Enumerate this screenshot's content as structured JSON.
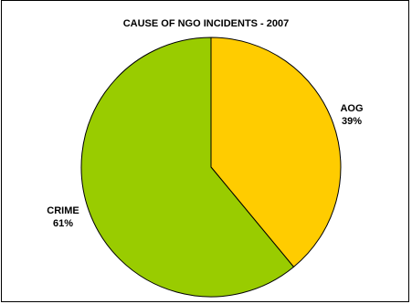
{
  "chart_data": {
    "type": "pie",
    "title": "CAUSE OF NGO INCIDENTS - 2007",
    "slices": [
      {
        "label": "AOG",
        "percent_label": "39%",
        "value": 39,
        "color": "#ffcc00"
      },
      {
        "label": "CRIME",
        "percent_label": "61%",
        "value": 61,
        "color": "#99cc00"
      }
    ],
    "start": "12 o'clock",
    "direction": "clockwise",
    "legend": "none"
  }
}
